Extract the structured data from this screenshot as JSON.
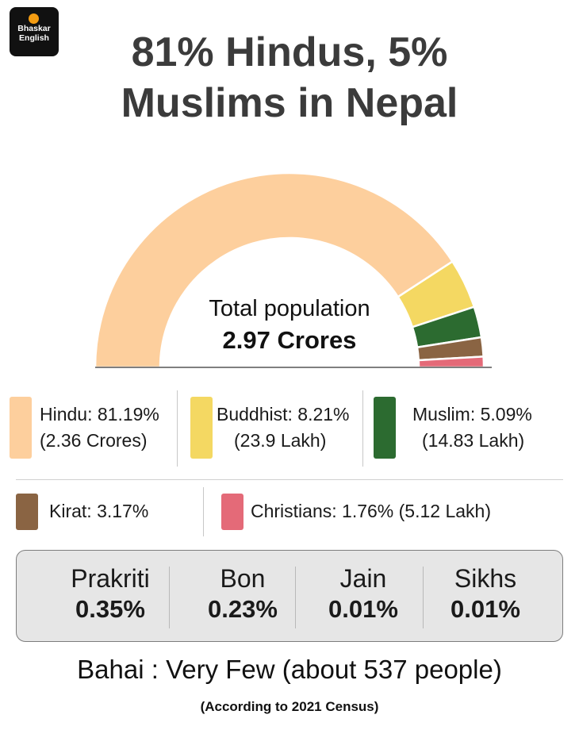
{
  "brand": {
    "line1": "Bhaskar",
    "line2": "English"
  },
  "title": {
    "line1": "81% Hindus, 5%",
    "line2": "Muslims in Nepal"
  },
  "center": {
    "label": "Total population",
    "value": "2.97 Crores"
  },
  "colors": {
    "hindu": "#fdcf9d",
    "buddhist": "#f4d862",
    "muslim": "#2c6b30",
    "kirat": "#8a6443",
    "christian": "#e46a78",
    "minor_bg": "#e6e6e6"
  },
  "legend": {
    "hindu": {
      "line1": "Hindu: 81.19%",
      "line2": "(2.36 Crores)"
    },
    "buddhist": {
      "line1": "Buddhist: 8.21%",
      "line2": "(23.9 Lakh)"
    },
    "muslim": {
      "line1": "Muslim: 5.09%",
      "line2": "(14.83 Lakh)"
    },
    "kirat": {
      "line1": "Kirat: 3.17%"
    },
    "christian": {
      "line1": "Christians: 1.76% (5.12 Lakh)"
    }
  },
  "minor": [
    {
      "name": "Prakriti",
      "value": "0.35%"
    },
    {
      "name": "Bon",
      "value": "0.23%"
    },
    {
      "name": "Jain",
      "value": "0.01%"
    },
    {
      "name": "Sikhs",
      "value": "0.01%"
    }
  ],
  "bahai": "Bahai : Very Few (about 537 people)",
  "source": "(According to 2021 Census)",
  "chart_data": {
    "type": "pie",
    "variant": "half-donut",
    "title": "81% Hindus, 5% Muslims in Nepal",
    "center_text": "Total population 2.97 Crores",
    "categories": [
      "Hindu",
      "Buddhist",
      "Muslim",
      "Kirat",
      "Christians"
    ],
    "values": [
      81.19,
      8.21,
      5.09,
      3.17,
      1.76
    ],
    "unit": "%",
    "colors": [
      "#fdcf9d",
      "#f4d862",
      "#2c6b30",
      "#8a6443",
      "#e46a78"
    ]
  }
}
